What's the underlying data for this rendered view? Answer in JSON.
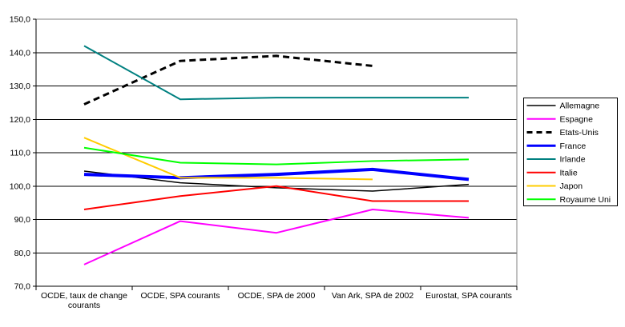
{
  "chart_data": {
    "type": "line",
    "title": "",
    "xlabel": "",
    "ylabel": "",
    "ylim": [
      70,
      150
    ],
    "grid": true,
    "legend_position": "right",
    "ytick_values": [
      150,
      140,
      130,
      120,
      110,
      100,
      90,
      80,
      70
    ],
    "ytick_labels": [
      "150,0",
      "140,0",
      "130,0",
      "120,0",
      "110,0",
      "100,0",
      "90,0",
      "80,0",
      "70,0"
    ],
    "categories": [
      "OCDE, taux de change courants",
      "OCDE, SPA courants",
      "OCDE, SPA de 2000",
      "Van Ark, SPA de 2002",
      "Eurostat, SPA courants"
    ],
    "category_label_lines": [
      [
        "OCDE, taux de change",
        "courants"
      ],
      [
        "OCDE, SPA courants"
      ],
      [
        "OCDE, SPA de 2000"
      ],
      [
        "Van Ark, SPA de 2002"
      ],
      [
        "Eurostat, SPA courants"
      ]
    ],
    "series": [
      {
        "name": "Allemagne",
        "color": "#000000",
        "width": 1.5,
        "dash": null,
        "values": [
          104.5,
          101,
          99.5,
          98.5,
          100.5
        ]
      },
      {
        "name": "Espagne",
        "color": "#FF00FF",
        "width": 2,
        "dash": null,
        "values": [
          76.5,
          89.5,
          86,
          93,
          90.5
        ]
      },
      {
        "name": "Etats-Unis",
        "color": "#000000",
        "width": 3,
        "dash": "8,5",
        "values": [
          124.5,
          137.5,
          139,
          136,
          null
        ]
      },
      {
        "name": "France",
        "color": "#0000FF",
        "width": 4,
        "dash": null,
        "values": [
          103.5,
          102.5,
          103.5,
          105,
          102
        ]
      },
      {
        "name": "Irlande",
        "color": "#008080",
        "width": 2,
        "dash": null,
        "values": [
          142,
          126,
          126.5,
          126.5,
          126.5
        ]
      },
      {
        "name": "Italie",
        "color": "#FF0000",
        "width": 2,
        "dash": null,
        "values": [
          93,
          97,
          100,
          95.5,
          95.5
        ]
      },
      {
        "name": "Japon",
        "color": "#FFCC00",
        "width": 2,
        "dash": null,
        "values": [
          114.5,
          102.5,
          102.5,
          102,
          null
        ]
      },
      {
        "name": "Royaume Uni",
        "color": "#00FF00",
        "width": 2,
        "dash": null,
        "values": [
          111.5,
          107,
          106.5,
          107.5,
          108
        ]
      }
    ],
    "colors": {
      "plot_border_gray": "#808080",
      "axis_black": "#000000",
      "background": "#FFFFFF"
    }
  }
}
